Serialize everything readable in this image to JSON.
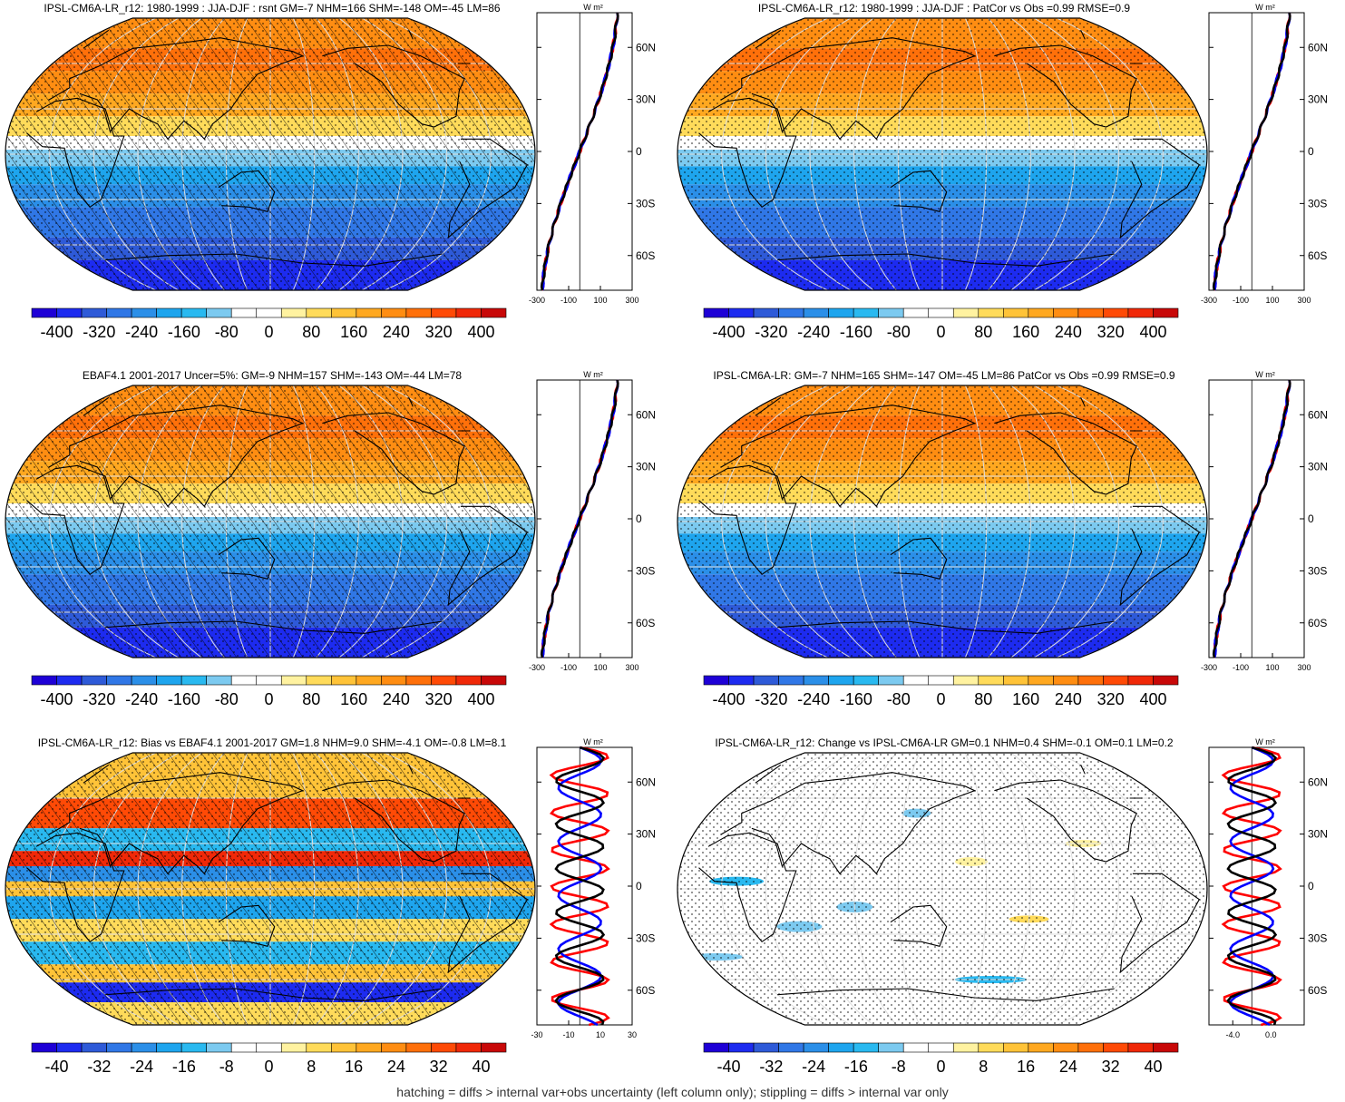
{
  "colors": {
    "scale": [
      "#1e00d6",
      "#1d2bf0",
      "#2e5ad8",
      "#3077e6",
      "#2b8fe8",
      "#1ea5ee",
      "#29b9f0",
      "#7ccaf0",
      "#ffffff",
      "#ffffff",
      "#fff2a0",
      "#ffdb5a",
      "#ffc338",
      "#ffa820",
      "#ff8d12",
      "#ff700a",
      "#ff4a06",
      "#f02808",
      "#c80808"
    ],
    "profile_blue": "#0000ff",
    "profile_red": "#ff0000",
    "profile_black": "#000000",
    "coast": "#000000",
    "grid": "#dddddd"
  },
  "profile_units": "W m²",
  "lat_ticks": [
    "60N",
    "30N",
    "0",
    "30S",
    "60S"
  ],
  "panels": [
    {
      "title": "IPSL-CM6A-LR_r12: 1980-1999 : JJA-DJF : rsnt GM=-7 NHM=166 SHM=-148 OM=-45 LM=86",
      "field": "rsnt",
      "hatching": true,
      "stippling": true,
      "profile_xticks": [
        "-300",
        "-100",
        "100",
        "300"
      ],
      "colorbar_labels": [
        "-400",
        "-320",
        "-240",
        "-160",
        "-80",
        "0",
        "80",
        "160",
        "240",
        "320",
        "400"
      ]
    },
    {
      "title": "IPSL-CM6A-LR_r12: 1980-1999 : JJA-DJF : PatCor vs Obs =0.99 RMSE=0.9",
      "field": "rsnt",
      "hatching": false,
      "stippling": true,
      "profile_xticks": [
        "-300",
        "-100",
        "100",
        "300"
      ],
      "colorbar_labels": [
        "-400",
        "-320",
        "-240",
        "-160",
        "-80",
        "0",
        "80",
        "160",
        "240",
        "320",
        "400"
      ]
    },
    {
      "title": "EBAF4.1 2001-2017 Uncer=5%: GM=-9 NHM=157 SHM=-143 OM=-44 LM=78",
      "field": "rsnt",
      "hatching": true,
      "stippling": true,
      "profile_xticks": [
        "-300",
        "-100",
        "100",
        "300"
      ],
      "colorbar_labels": [
        "-400",
        "-320",
        "-240",
        "-160",
        "-80",
        "0",
        "80",
        "160",
        "240",
        "320",
        "400"
      ]
    },
    {
      "title": "IPSL-CM6A-LR: GM=-7 NHM=165 SHM=-147 OM=-45 LM=86 PatCor vs Obs =0.99 RMSE=0.9",
      "field": "rsnt",
      "hatching": false,
      "stippling": true,
      "profile_xticks": [
        "-300",
        "-100",
        "100",
        "300"
      ],
      "colorbar_labels": [
        "-400",
        "-320",
        "-240",
        "-160",
        "-80",
        "0",
        "80",
        "160",
        "240",
        "320",
        "400"
      ]
    },
    {
      "title": "IPSL-CM6A-LR_r12: Bias vs EBAF4.1 2001-2017 GM=1.8 NHM=9.0 SHM=-4.1 OM=-0.8 LM=8.1",
      "field": "bias",
      "hatching": true,
      "stippling": true,
      "profile_xticks": [
        "-30",
        "-10",
        "10",
        "30"
      ],
      "colorbar_labels": [
        "-40",
        "-32",
        "-24",
        "-16",
        "-8",
        "0",
        "8",
        "16",
        "24",
        "32",
        "40"
      ]
    },
    {
      "title": "IPSL-CM6A-LR_r12: Change vs IPSL-CM6A-LR GM=0.1 NHM=0.4 SHM=-0.1 OM=0.1 LM=0.2",
      "field": "change",
      "hatching": false,
      "stippling": true,
      "profile_xticks": [
        "-4.0",
        "0.0"
      ],
      "colorbar_labels": [
        "-40",
        "-32",
        "-24",
        "-16",
        "-8",
        "0",
        "8",
        "16",
        "24",
        "32",
        "40"
      ]
    }
  ],
  "footer": "hatching = diffs > internal var+obs uncertainty (left column only); stippling = diffs > internal var only"
}
